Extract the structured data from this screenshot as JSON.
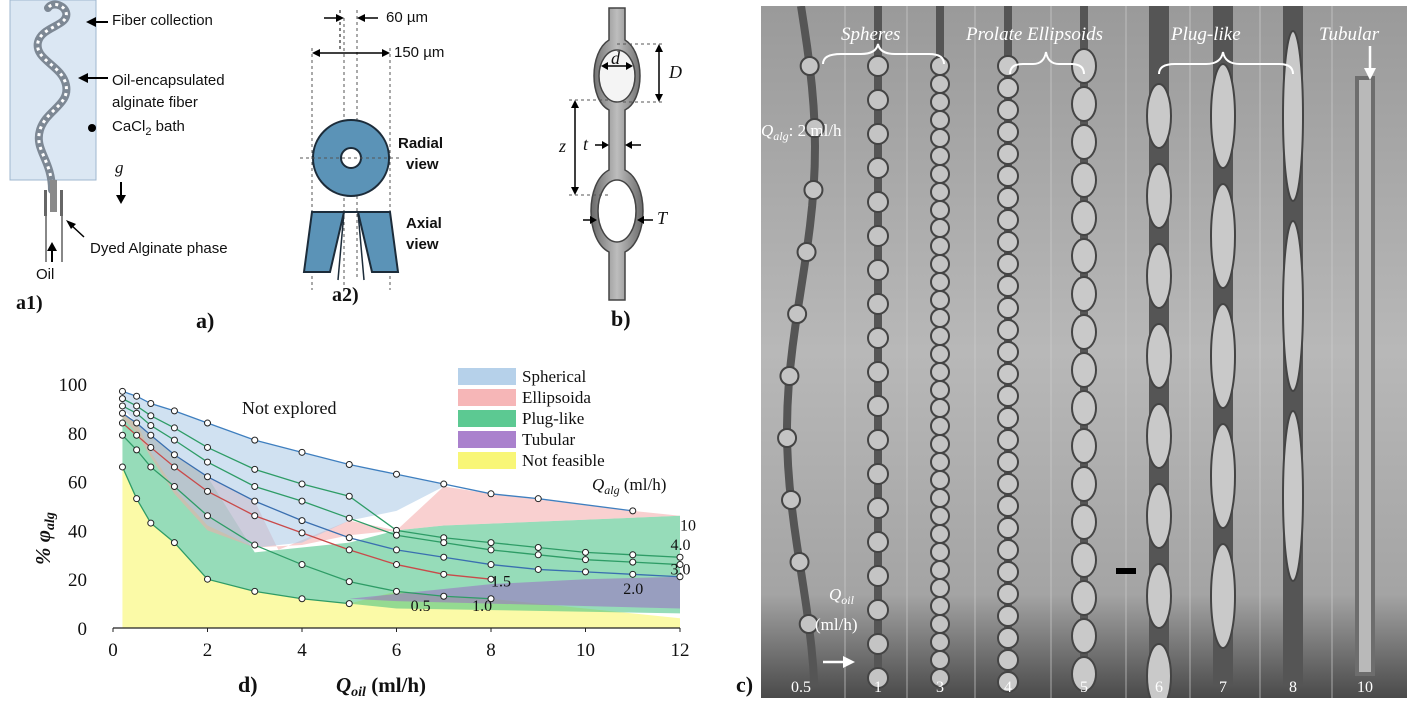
{
  "panel_a": {
    "a1_labels": {
      "fiber_collection": "Fiber collection",
      "oil_fiber_line1": "Oil-encapsulated",
      "oil_fiber_line2": "alginate fiber",
      "bath": "CaCl",
      "bath_sub": "2",
      "bath_suffix": " bath",
      "gravity": "g",
      "dyed_alginate": "Dyed Alginate phase",
      "oil": "Oil"
    },
    "a2_labels": {
      "inner_dim": "60 µm",
      "outer_dim": "150 µm",
      "radial_line1": "Radial",
      "radial_line2": "view",
      "axial_line1": "Axial",
      "axial_line2": "view"
    },
    "label_a1": "a1)",
    "label_a2": "a2)",
    "label_a": "a)"
  },
  "panel_b": {
    "d": "d",
    "D": "D",
    "z": "z",
    "t": "t",
    "T": "T",
    "label": "b)"
  },
  "panel_c": {
    "groups": [
      "Spheres",
      "Prolate Ellipsoids",
      "Plug-like",
      "Tubular"
    ],
    "qalg_label": "Q",
    "qalg_sub": "alg",
    "qalg_value": ": 2 ml/h",
    "qoil_label": "Q",
    "qoil_sub": "oil",
    "qoil_unit": "(ml/h)",
    "column_values": [
      "0.5",
      "1",
      "3",
      "4",
      "5",
      "6",
      "7",
      "8",
      "10"
    ],
    "label": "c)"
  },
  "chart_data": {
    "type": "line",
    "xlabel": "Q",
    "xlabel_sub": "oil",
    "xlabel_unit": " (ml/h)",
    "ylabel": "% φ",
    "ylabel_sub": "alg",
    "xlim": [
      0,
      12
    ],
    "ylim": [
      0,
      100
    ],
    "x_ticks": [
      0,
      2,
      4,
      6,
      8,
      10,
      12
    ],
    "y_ticks": [
      0,
      20,
      40,
      60,
      80,
      100
    ],
    "not_explored_label": "Not explored",
    "series_title": "Q",
    "series_title_sub": "alg",
    "series_title_unit": " (ml/h)",
    "legend": [
      {
        "name": "Spherical",
        "color": "#a9c9e6"
      },
      {
        "name": "Ellipsoida",
        "color": "#f4a9aa"
      },
      {
        "name": "Plug-like",
        "color": "#3fbf7f"
      },
      {
        "name": "Tubular",
        "color": "#9b6bc4"
      },
      {
        "name": "Not feasible",
        "color": "#f7f55f"
      }
    ],
    "series": [
      {
        "name": "10",
        "label_at": [
          12,
          40
        ],
        "x": [
          0.2,
          0.5,
          0.8,
          1.3,
          2,
          3,
          4,
          5,
          6,
          7,
          8,
          9,
          11
        ],
        "y": [
          97,
          95,
          92,
          89,
          84,
          77,
          72,
          67,
          63,
          59,
          55,
          53,
          48
        ]
      },
      {
        "name": "4.0",
        "label_at": [
          11.8,
          32
        ],
        "x": [
          0.2,
          0.5,
          0.8,
          1.3,
          2,
          3,
          4,
          5,
          6,
          7,
          8,
          9,
          10,
          11,
          12
        ],
        "y": [
          94,
          91,
          87,
          82,
          74,
          65,
          59,
          54,
          40,
          37,
          35,
          33,
          31,
          30,
          29
        ]
      },
      {
        "name": "3.0",
        "label_at": [
          11.8,
          22
        ],
        "x": [
          0.2,
          0.5,
          0.8,
          1.3,
          2,
          3,
          4,
          5,
          6,
          7,
          8,
          9,
          10,
          11,
          12
        ],
        "y": [
          91,
          88,
          83,
          77,
          68,
          58,
          52,
          45,
          38,
          35,
          32,
          30,
          28,
          27,
          26
        ]
      },
      {
        "name": "2.0",
        "label_at": [
          10.8,
          14
        ],
        "x": [
          0.2,
          0.5,
          0.8,
          1.3,
          2,
          3,
          4,
          5,
          6,
          7,
          8,
          9,
          10,
          11,
          12
        ],
        "y": [
          88,
          84,
          79,
          71,
          62,
          52,
          44,
          37,
          32,
          29,
          26,
          24,
          23,
          22,
          21
        ]
      },
      {
        "name": "1.5",
        "label_at": [
          8.0,
          17
        ],
        "x": [
          0.2,
          0.5,
          0.8,
          1.3,
          2,
          3,
          4,
          5,
          6,
          7,
          8
        ],
        "y": [
          84,
          79,
          74,
          66,
          56,
          46,
          39,
          32,
          26,
          22,
          20
        ]
      },
      {
        "name": "1.0",
        "label_at": [
          7.6,
          7
        ],
        "x": [
          0.2,
          0.5,
          0.8,
          1.3,
          2,
          3,
          4,
          5,
          6,
          7,
          8
        ],
        "y": [
          79,
          73,
          66,
          58,
          46,
          34,
          26,
          19,
          15,
          13,
          12
        ]
      },
      {
        "name": "0.5",
        "label_at": [
          6.3,
          7
        ],
        "x": [
          0.2,
          0.5,
          0.8,
          1.3,
          2,
          3,
          4,
          5
        ],
        "y": [
          66,
          53,
          43,
          35,
          20,
          15,
          12,
          10
        ]
      }
    ]
  },
  "panel_d_label": "d)"
}
